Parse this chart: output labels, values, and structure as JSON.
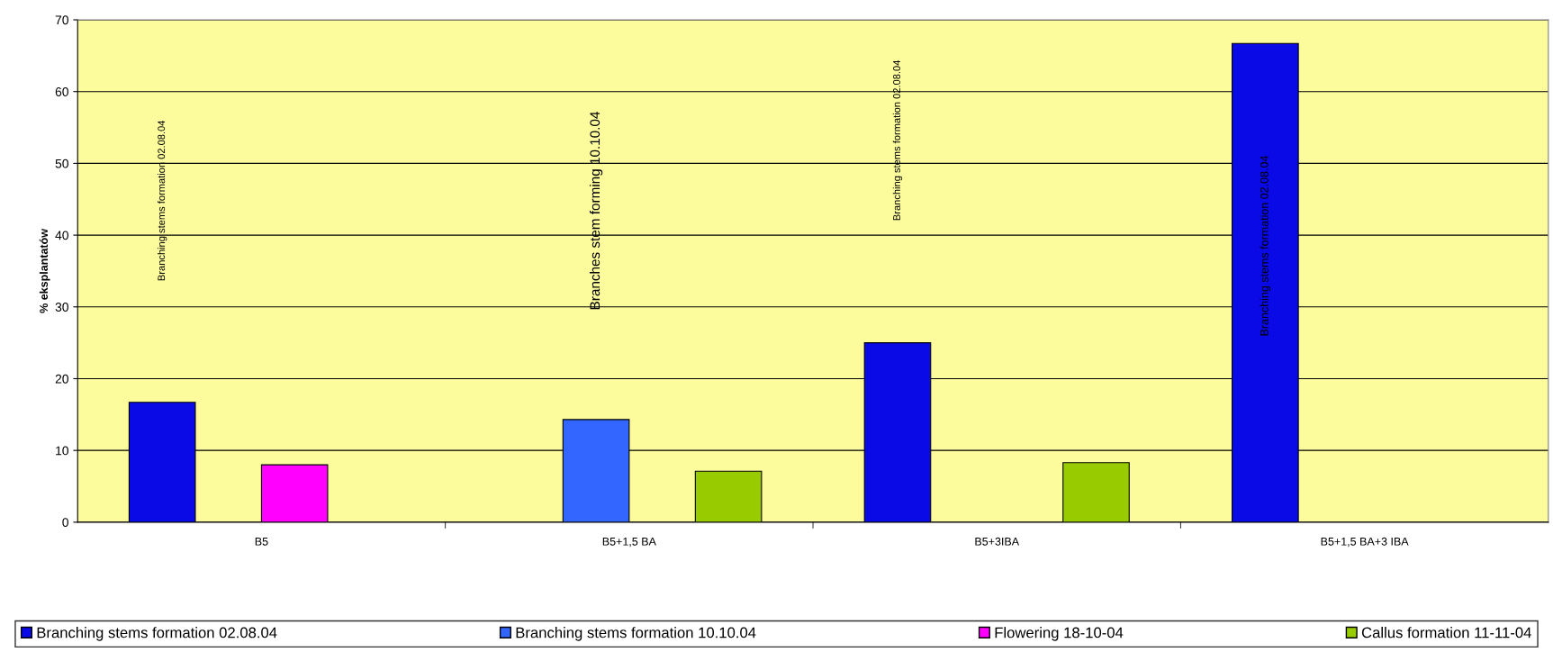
{
  "chart_data": {
    "type": "bar",
    "ylabel": "% eksplantatów",
    "categories": [
      "B5",
      "B5+1,5 BA",
      "B5+3IBA",
      "B5+1,5 BA+3 IBA"
    ],
    "series": [
      {
        "name": "Branching stems formation 02.08.04",
        "color": "#0a0ae6",
        "values": [
          16.7,
          null,
          25,
          66.7
        ]
      },
      {
        "name": "Branching stems formation 10.10.04",
        "color": "#3366ff",
        "values": [
          null,
          14.3,
          null,
          null
        ]
      },
      {
        "name": "Flowering 18-10-04",
        "color": "#ff00ff",
        "values": [
          8,
          null,
          null,
          null
        ]
      },
      {
        "name": "Callus formation 11-11-04",
        "color": "#99cc00",
        "values": [
          null,
          7.1,
          8.3,
          null
        ]
      }
    ],
    "annotations": [
      "Branching stems formation 02.08.04",
      "Branches stem forming 10.10.04",
      "Branching stems formation 02.08.04",
      "Branching stems formation 02.08.04"
    ],
    "ylim": [
      0,
      70
    ],
    "yticks": [
      0,
      10,
      20,
      30,
      40,
      50,
      60,
      70
    ],
    "grid": "y",
    "legend": "bottom"
  }
}
